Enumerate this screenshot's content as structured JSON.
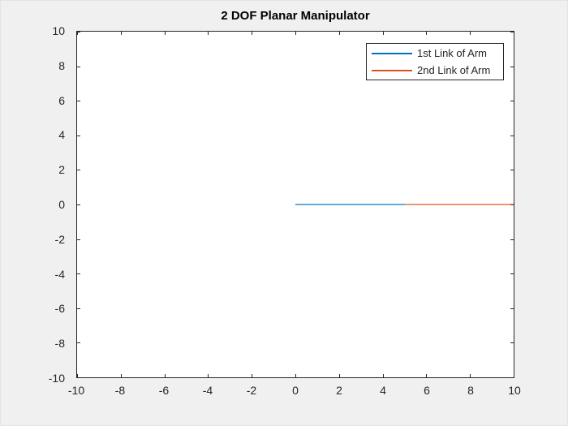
{
  "figure": {
    "title": "2 DOF Planar Manipulator",
    "background_color": "#f0f0f0",
    "plot_background_color": "#ffffff",
    "axis_color": "#262626"
  },
  "legend": {
    "entries": [
      {
        "label": "1st Link of Arm",
        "color": "#0072BD"
      },
      {
        "label": "2nd Link of Arm",
        "color": "#D95319"
      }
    ]
  },
  "chart_data": {
    "type": "line",
    "title": "2 DOF Planar Manipulator",
    "xlabel": "",
    "ylabel": "",
    "xlim": [
      -10,
      10
    ],
    "ylim": [
      -10,
      10
    ],
    "xticks": [
      -10,
      -8,
      -6,
      -4,
      -2,
      0,
      2,
      4,
      6,
      8,
      10
    ],
    "yticks": [
      -10,
      -8,
      -6,
      -4,
      -2,
      0,
      2,
      4,
      6,
      8,
      10
    ],
    "grid": false,
    "tick_direction": "in",
    "box": true,
    "legend_position": "northeast",
    "series": [
      {
        "name": "1st Link of Arm",
        "color": "#0072BD",
        "x": [
          0,
          5
        ],
        "y": [
          0,
          0
        ]
      },
      {
        "name": "2nd Link of Arm",
        "color": "#D95319",
        "x": [
          5,
          10
        ],
        "y": [
          0,
          0
        ]
      }
    ]
  }
}
